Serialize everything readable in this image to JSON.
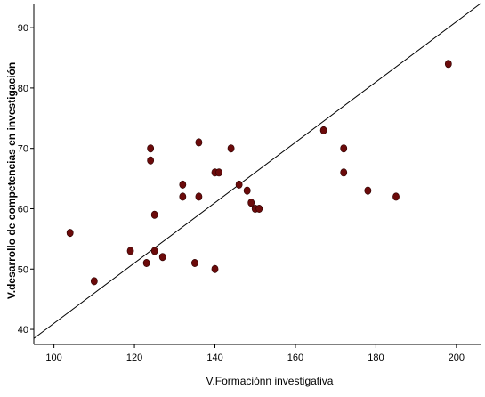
{
  "chart_data": {
    "type": "scatter",
    "xlabel": "V.Formaciónn investigativa",
    "ylabel": "V.desarrollo de competencias en investigación",
    "xlim": [
      95,
      206
    ],
    "ylim": [
      37.5,
      94
    ],
    "xticks": [
      100,
      120,
      140,
      160,
      180,
      200
    ],
    "yticks": [
      40,
      50,
      60,
      70,
      80,
      90
    ],
    "grid": false,
    "fit_line": {
      "x": [
        95,
        206
      ],
      "y": [
        38.5,
        94
      ]
    },
    "point_color": "#6b0a0a",
    "points": [
      {
        "x": 104,
        "y": 56
      },
      {
        "x": 110,
        "y": 48
      },
      {
        "x": 119,
        "y": 53
      },
      {
        "x": 123,
        "y": 51
      },
      {
        "x": 124,
        "y": 70
      },
      {
        "x": 124,
        "y": 68
      },
      {
        "x": 125,
        "y": 59
      },
      {
        "x": 125,
        "y": 53
      },
      {
        "x": 127,
        "y": 52
      },
      {
        "x": 132,
        "y": 64
      },
      {
        "x": 132,
        "y": 62
      },
      {
        "x": 135,
        "y": 51
      },
      {
        "x": 136,
        "y": 71
      },
      {
        "x": 136,
        "y": 62
      },
      {
        "x": 140,
        "y": 66
      },
      {
        "x": 140,
        "y": 50
      },
      {
        "x": 141,
        "y": 66
      },
      {
        "x": 144,
        "y": 70
      },
      {
        "x": 146,
        "y": 64
      },
      {
        "x": 148,
        "y": 63
      },
      {
        "x": 149,
        "y": 61
      },
      {
        "x": 150,
        "y": 60
      },
      {
        "x": 151,
        "y": 60
      },
      {
        "x": 167,
        "y": 73
      },
      {
        "x": 172,
        "y": 70
      },
      {
        "x": 172,
        "y": 66
      },
      {
        "x": 178,
        "y": 63
      },
      {
        "x": 185,
        "y": 62
      },
      {
        "x": 198,
        "y": 84
      }
    ]
  }
}
